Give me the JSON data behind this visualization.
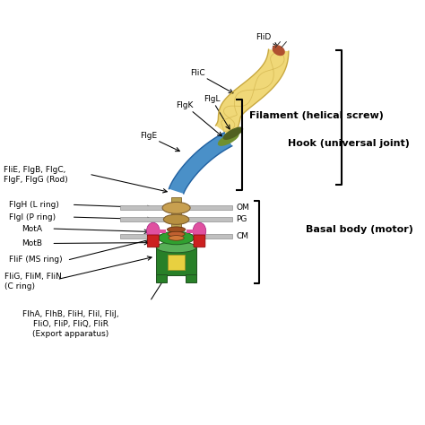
{
  "bg": "#ffffff",
  "colors": {
    "filament": "#f0d878",
    "filament_outline": "#c8a840",
    "hook": "#4a90c8",
    "hook_outline": "#2060a0",
    "flgK_band": "#88a030",
    "flgL_band": "#607020",
    "rod_color": "#b8a050",
    "om_ring": "#c8a050",
    "pg_ring": "#b89040",
    "mot_pink": "#e050a0",
    "mot_red": "#cc2020",
    "ms_ring_dark": "#30a030",
    "ms_ring_light": "#70c870",
    "c_ring_dark": "#288028",
    "c_ring_light": "#58b058",
    "export_yellow": "#e8d040",
    "membrane_gray": "#c0c0c0",
    "membrane_dark": "#909090",
    "brown_stator": "#8b4513",
    "orange_disc": "#d07828"
  },
  "labels": {
    "FliD": "FliD",
    "FliC": "FliC",
    "FlgK": "FlgK",
    "FlgL": "FlgL",
    "FlgE": "FlgE",
    "rod": "FliE, FlgB, FlgC,\nFlgF, FlgG (Rod)",
    "FlgH": "FlgH (L ring)",
    "FlgI": "FlgI (P ring)",
    "MotA": "MotA",
    "MotB": "MotB",
    "FliF": "FliF (MS ring)",
    "C_ring": "FliG, FliM, FliN\n(C ring)",
    "export": "FlhA, FlhB, FliH, FliI, FliJ,\nFliO, FliP, FliQ, FliR\n(Export apparatus)",
    "OM": "OM",
    "PG": "PG",
    "CM": "CM",
    "filament_label": "Filament (helical screw)",
    "hook_label": "Hook (universal joint)",
    "basal_label": "Basal body (motor)"
  }
}
